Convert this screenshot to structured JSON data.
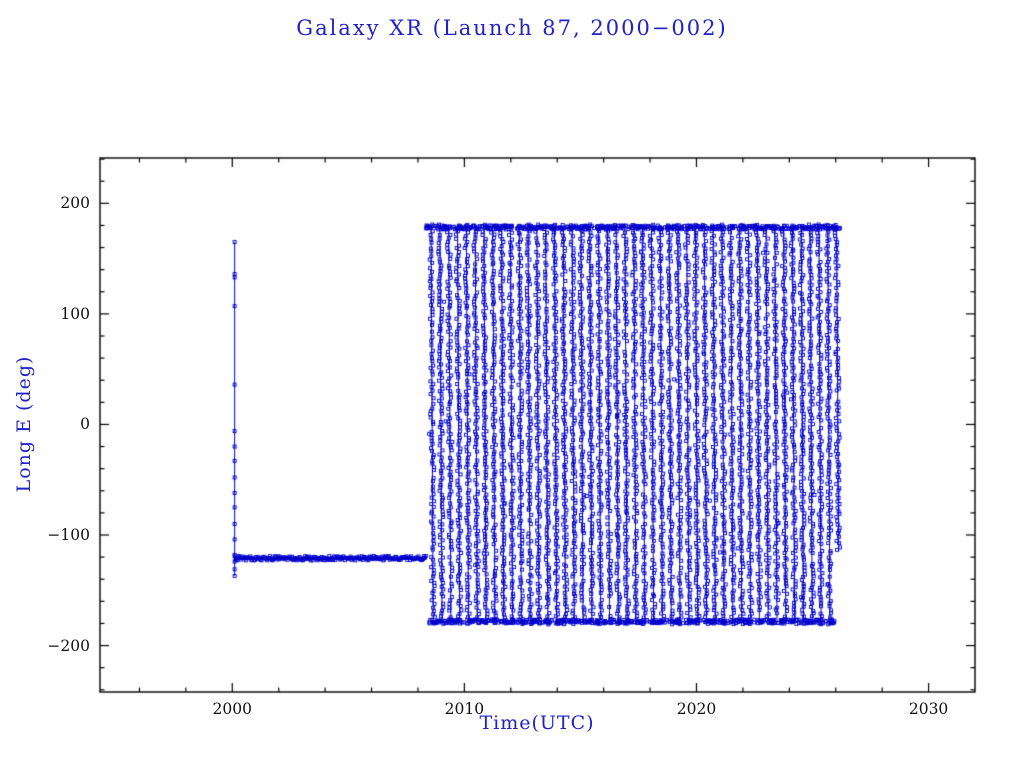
{
  "page": {
    "background": "#ffffff"
  },
  "chart_data": {
    "type": "scatter",
    "title": "Galaxy XR (Launch 87, 2000−002)",
    "xlabel": "Time(UTC)",
    "ylabel": "Long E (deg)",
    "xlim": [
      1994.3,
      2032.0
    ],
    "ylim": [
      -242,
      241
    ],
    "xticks": [
      2000,
      2010,
      2020,
      2030
    ],
    "yticks": [
      -200,
      -100,
      0,
      100,
      200
    ],
    "x_minor_step": 2,
    "y_minor_step": 20,
    "grid": false,
    "marker": "open-square",
    "colors": {
      "data": "#0000cc",
      "frame": "#000000",
      "tick_text": "#111111",
      "label_text": "#2121c8"
    },
    "series": [
      {
        "name": "launch-epoch-scatter",
        "type": "vertical-scatter",
        "x": 2000.1,
        "y_values": [
          165,
          136,
          133,
          107,
          36,
          -6,
          -20,
          -33,
          -48,
          -62,
          -75,
          -90,
          -104,
          -118,
          -124,
          -131,
          -137
        ]
      },
      {
        "name": "geostationary-hold",
        "type": "horizontal-band",
        "x_start": 2000.1,
        "x_end": 2008.35,
        "y": -121,
        "thickness_deg": 4
      },
      {
        "name": "drift-phase",
        "type": "sawtooth-drift",
        "x_start": 2008.45,
        "x_end": 2026.3,
        "y_max": 180,
        "y_min": -180,
        "cycles": 47,
        "y_end": -115
      }
    ]
  }
}
